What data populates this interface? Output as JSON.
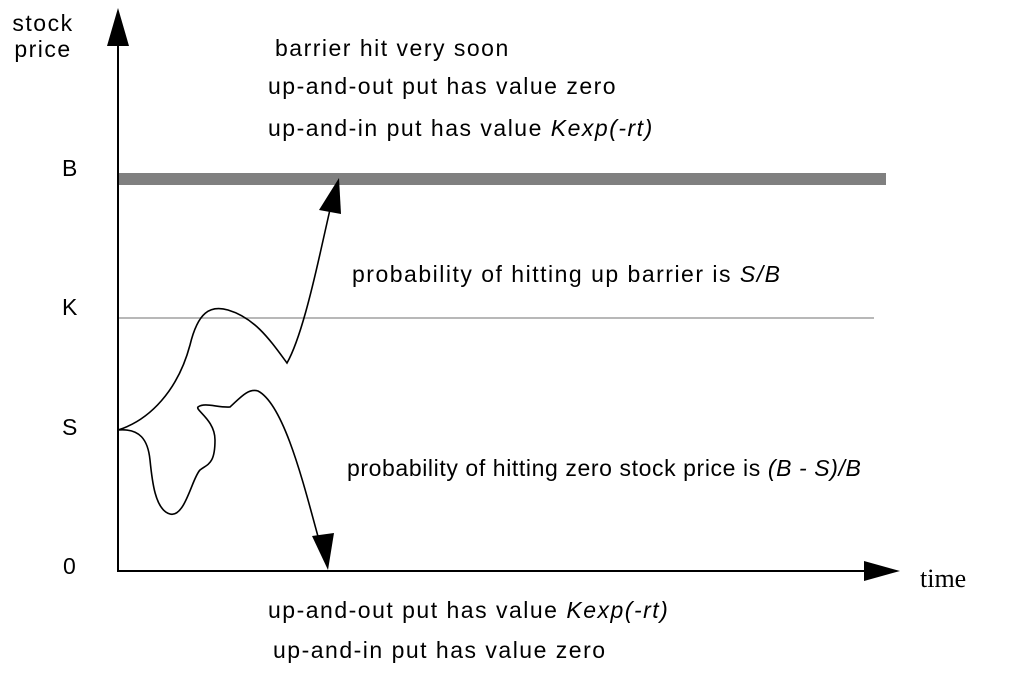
{
  "axes": {
    "y_label_line1": "stock",
    "y_label_line2": "price",
    "x_label": "time",
    "ticks": {
      "B": "B",
      "K": "K",
      "S": "S",
      "zero": "0"
    }
  },
  "top_annotation": {
    "line1": "barrier hit very soon",
    "line2": "up-and-out put has value zero",
    "line3_prefix": "up-and-in put has value ",
    "line3_italic": "Kexp(-rt)"
  },
  "up_probability": {
    "prefix": "probability of hitting up barrier is ",
    "italic": "S/B"
  },
  "zero_probability": {
    "prefix": "probability of hitting zero stock price is ",
    "italic": "(B - S)/B"
  },
  "bottom_annotation": {
    "line1_prefix": "up-and-out put has value ",
    "line1_italic": "Kexp(-rt)",
    "line2": "up-and-in put has value zero"
  },
  "colors": {
    "barrier_line": "#808080",
    "strike_line": "#a0a0a0",
    "ink": "#000000"
  }
}
